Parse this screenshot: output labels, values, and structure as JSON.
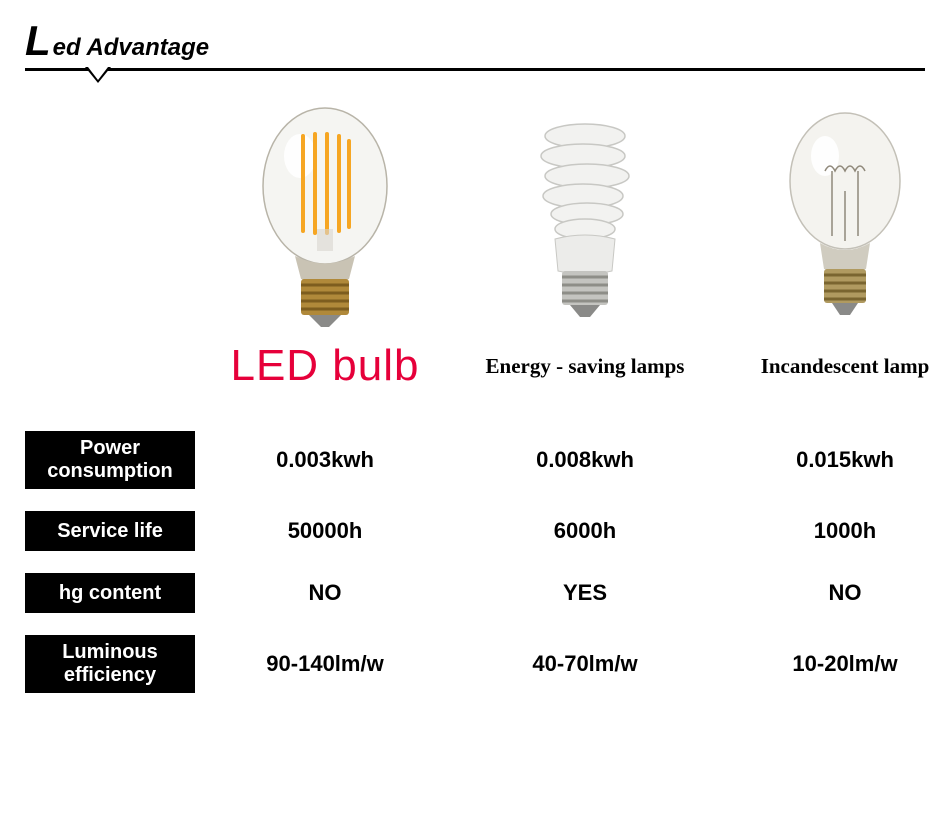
{
  "title": {
    "big": "L",
    "rest": "ed Advantage"
  },
  "columns": {
    "c1": "LED bulb",
    "c2": "Energy - saving  lamps",
    "c3": "Incandescent lamp"
  },
  "labelStyle": {
    "led_color": "#e6003a",
    "led_fontsize": 44,
    "other_fontsize": 21
  },
  "rows": [
    {
      "header": "Power\nconsumption",
      "v1": "0.003kwh",
      "v2": "0.008kwh",
      "v3": "0.015kwh",
      "twoLine": true
    },
    {
      "header": "Service life",
      "v1": "50000h",
      "v2": "6000h",
      "v3": "1000h",
      "twoLine": false
    },
    {
      "header": "hg content",
      "v1": "NO",
      "v2": "YES",
      "v3": "NO",
      "twoLine": false
    },
    {
      "header": "Luminous\nefficiency",
      "v1": "90-140lm/w",
      "v2": "40-70lm/w",
      "v3": "10-20lm/w",
      "twoLine": true
    }
  ],
  "colors": {
    "text": "#000000",
    "header_bg": "#000000",
    "header_fg": "#ffffff",
    "rule": "#000000"
  }
}
